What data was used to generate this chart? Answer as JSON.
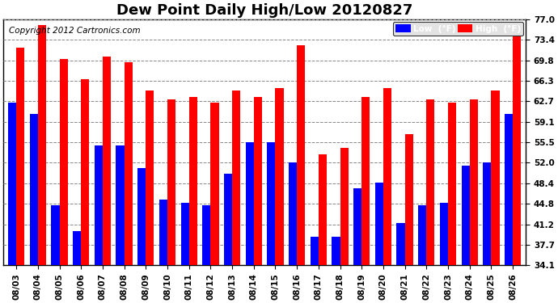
{
  "title": "Dew Point Daily High/Low 20120827",
  "copyright": "Copyright 2012 Cartronics.com",
  "legend_low": "Low  (°F)",
  "legend_high": "High  (°F)",
  "dates": [
    "08/03",
    "08/04",
    "08/05",
    "08/06",
    "08/07",
    "08/08",
    "08/09",
    "08/10",
    "08/11",
    "08/12",
    "08/13",
    "08/14",
    "08/15",
    "08/16",
    "08/17",
    "08/18",
    "08/19",
    "08/20",
    "08/21",
    "08/22",
    "08/23",
    "08/24",
    "08/25",
    "08/26"
  ],
  "low_values": [
    62.5,
    60.5,
    44.5,
    40.0,
    55.0,
    55.0,
    51.0,
    45.5,
    45.0,
    44.5,
    50.0,
    55.5,
    55.5,
    52.0,
    39.0,
    39.0,
    47.5,
    48.5,
    41.5,
    44.5,
    45.0,
    51.5,
    52.0,
    60.5
  ],
  "high_values": [
    72.0,
    76.0,
    70.0,
    66.5,
    70.5,
    69.5,
    64.5,
    63.0,
    63.5,
    62.5,
    64.5,
    63.5,
    65.0,
    72.5,
    53.5,
    54.5,
    63.5,
    65.0,
    57.0,
    63.0,
    62.5,
    63.0,
    64.5,
    74.0
  ],
  "ymin": 34.1,
  "ymax": 77.0,
  "yticks": [
    34.1,
    37.7,
    41.2,
    44.8,
    48.4,
    52.0,
    55.5,
    59.1,
    62.7,
    66.3,
    69.8,
    73.4,
    77.0
  ],
  "bg_color": "#ffffff",
  "plot_bg_color": "#ffffff",
  "bar_width": 0.38,
  "low_color": "#0000ff",
  "high_color": "#ff0000",
  "grid_color": "#888888",
  "title_color": "#000000",
  "title_fontsize": 13,
  "tick_fontsize": 7.5,
  "copyright_fontsize": 7.5,
  "copyright_color": "#000000"
}
